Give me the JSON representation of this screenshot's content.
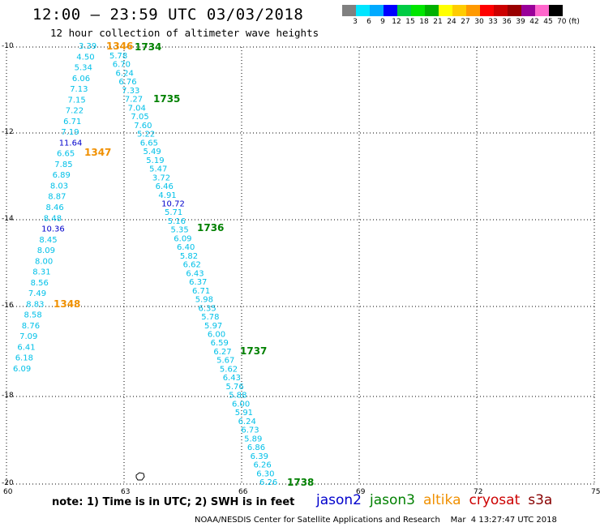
{
  "title": "12:00 – 23:59 UTC 03/03/2018",
  "subtitle": "12 hour collection of altimeter wave heights",
  "legend": {
    "labels": [
      "3",
      "6",
      "9",
      "12",
      "15",
      "18",
      "21",
      "24",
      "27",
      "30",
      "33",
      "36",
      "39",
      "42",
      "45",
      "70 (ft)"
    ],
    "colors": [
      "#808080",
      "#00e5ff",
      "#00aaff",
      "#0000ff",
      "#00cc44",
      "#00e600",
      "#00b000",
      "#ffff00",
      "#ffcc00",
      "#ff9900",
      "#ff0000",
      "#cc0000",
      "#990000",
      "#990099",
      "#ff66cc",
      "#000000"
    ]
  },
  "axes": {
    "lon_labels": [
      "60",
      "63",
      "66",
      "69",
      "72",
      "75"
    ],
    "lat_labels": [
      "-10",
      "-12",
      "-14",
      "-16",
      "-18",
      "-20"
    ]
  },
  "colors": {
    "cyan": "#00c0e8",
    "blue": "#0000cc",
    "orange": "#f09000",
    "green": "#008000"
  },
  "track_a": [
    {
      "v": "3.39",
      "c": "cyan"
    },
    {
      "v": "4.50",
      "c": "cyan"
    },
    {
      "v": "5.34",
      "c": "cyan"
    },
    {
      "v": "6.06",
      "c": "cyan"
    },
    {
      "v": "7.13",
      "c": "cyan"
    },
    {
      "v": "7.15",
      "c": "cyan"
    },
    {
      "v": "7.22",
      "c": "cyan"
    },
    {
      "v": "6.71",
      "c": "cyan"
    },
    {
      "v": "7.19",
      "c": "cyan"
    },
    {
      "v": "11.64",
      "c": "blue"
    },
    {
      "v": "6.65",
      "c": "cyan"
    },
    {
      "v": "7.85",
      "c": "cyan"
    },
    {
      "v": "6.89",
      "c": "cyan"
    },
    {
      "v": "8.03",
      "c": "cyan"
    },
    {
      "v": "8.87",
      "c": "cyan"
    },
    {
      "v": "8.46",
      "c": "cyan"
    },
    {
      "v": "8.48",
      "c": "cyan"
    },
    {
      "v": "10.36",
      "c": "blue"
    },
    {
      "v": "8.45",
      "c": "cyan"
    },
    {
      "v": "8.09",
      "c": "cyan"
    },
    {
      "v": "8.00",
      "c": "cyan"
    },
    {
      "v": "8.31",
      "c": "cyan"
    },
    {
      "v": "8.56",
      "c": "cyan"
    },
    {
      "v": "7.49",
      "c": "cyan"
    },
    {
      "v": "8.83",
      "c": "cyan"
    },
    {
      "v": "8.58",
      "c": "cyan"
    },
    {
      "v": "8.76",
      "c": "cyan"
    },
    {
      "v": "7.09",
      "c": "cyan"
    },
    {
      "v": "6.41",
      "c": "cyan"
    },
    {
      "v": "6.18",
      "c": "cyan"
    },
    {
      "v": "6.09",
      "c": "cyan"
    }
  ],
  "track_b": [
    {
      "v": "5.78",
      "c": "cyan"
    },
    {
      "v": "6.70",
      "c": "cyan"
    },
    {
      "v": "6.24",
      "c": "cyan"
    },
    {
      "v": "6.76",
      "c": "cyan"
    },
    {
      "v": "7.33",
      "c": "cyan"
    },
    {
      "v": "7.27",
      "c": "cyan"
    },
    {
      "v": "7.04",
      "c": "cyan"
    },
    {
      "v": "7.05",
      "c": "cyan"
    },
    {
      "v": "7.60",
      "c": "cyan"
    },
    {
      "v": "5.22",
      "c": "cyan"
    },
    {
      "v": "6.65",
      "c": "cyan"
    },
    {
      "v": "5.49",
      "c": "cyan"
    },
    {
      "v": "5.19",
      "c": "cyan"
    },
    {
      "v": "5.47",
      "c": "cyan"
    },
    {
      "v": "3.72",
      "c": "cyan"
    },
    {
      "v": "6.46",
      "c": "cyan"
    },
    {
      "v": "4.91",
      "c": "cyan"
    },
    {
      "v": "10.72",
      "c": "blue"
    },
    {
      "v": "5.71",
      "c": "cyan"
    },
    {
      "v": "5.16",
      "c": "cyan"
    },
    {
      "v": "5.35",
      "c": "cyan"
    },
    {
      "v": "6.09",
      "c": "cyan"
    },
    {
      "v": "6.40",
      "c": "cyan"
    },
    {
      "v": "5.82",
      "c": "cyan"
    },
    {
      "v": "6.62",
      "c": "cyan"
    },
    {
      "v": "6.43",
      "c": "cyan"
    },
    {
      "v": "6.37",
      "c": "cyan"
    },
    {
      "v": "6.71",
      "c": "cyan"
    },
    {
      "v": "5.98",
      "c": "cyan"
    },
    {
      "v": "6.35",
      "c": "cyan"
    },
    {
      "v": "5.78",
      "c": "cyan"
    },
    {
      "v": "5.97",
      "c": "cyan"
    },
    {
      "v": "6.00",
      "c": "cyan"
    },
    {
      "v": "6.59",
      "c": "cyan"
    },
    {
      "v": "6.27",
      "c": "cyan"
    },
    {
      "v": "5.67",
      "c": "cyan"
    },
    {
      "v": "5.62",
      "c": "cyan"
    },
    {
      "v": "6.43",
      "c": "cyan"
    },
    {
      "v": "5.76",
      "c": "cyan"
    },
    {
      "v": "5.88",
      "c": "cyan"
    },
    {
      "v": "6.00",
      "c": "cyan"
    },
    {
      "v": "5.91",
      "c": "cyan"
    },
    {
      "v": "6.24",
      "c": "cyan"
    },
    {
      "v": "6.73",
      "c": "cyan"
    },
    {
      "v": "5.89",
      "c": "cyan"
    },
    {
      "v": "6.86",
      "c": "cyan"
    },
    {
      "v": "6.39",
      "c": "cyan"
    },
    {
      "v": "6.26",
      "c": "cyan"
    },
    {
      "v": "6.30",
      "c": "cyan"
    },
    {
      "v": "6.26",
      "c": "cyan"
    }
  ],
  "time_labels_a": [
    {
      "t": "1346",
      "c": "orange"
    },
    {
      "t": "1347",
      "c": "orange"
    },
    {
      "t": "1348",
      "c": "orange"
    }
  ],
  "time_labels_b": [
    {
      "t": "1734",
      "c": "green"
    },
    {
      "t": "1735",
      "c": "green"
    },
    {
      "t": "1736",
      "c": "green"
    },
    {
      "t": "1737",
      "c": "green"
    },
    {
      "t": "1738",
      "c": "green"
    }
  ],
  "note": "note:  1) Time is in UTC;  2) SWH is in feet",
  "satellites": [
    {
      "name": "jason2",
      "color": "#0000cc"
    },
    {
      "name": "jason3",
      "color": "#008000"
    },
    {
      "name": "altika",
      "color": "#f09000"
    },
    {
      "name": "cryosat",
      "color": "#cc0000"
    },
    {
      "name": "s3a",
      "color": "#880000"
    }
  ],
  "credit": "NOAA/NESDIS Center for Satellite Applications and Research    Mar  4 13:27:47 UTC 2018"
}
